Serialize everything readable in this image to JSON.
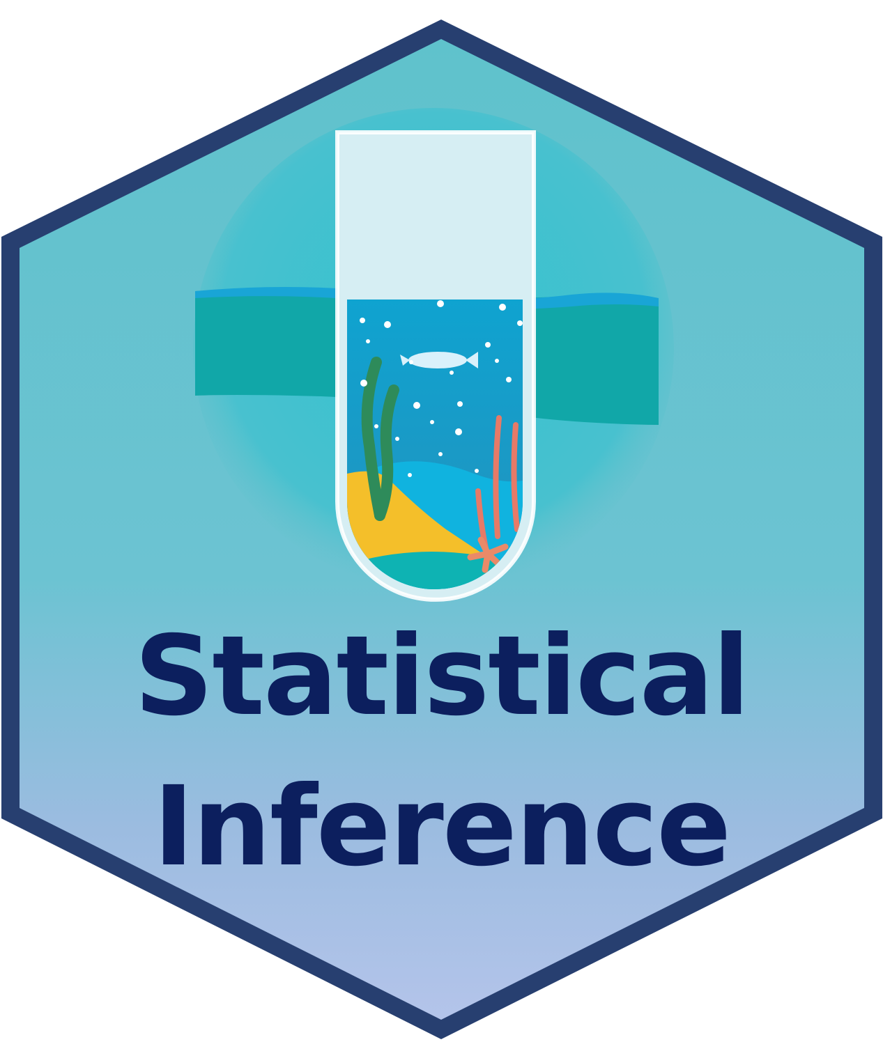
{
  "logo": {
    "title_line_1": "Statistical",
    "title_line_2": "Inference",
    "colors": {
      "border": "#273f70",
      "background_top": "#5fc2cc",
      "background_bottom": "#aebfe6",
      "title": "#0c1f5e",
      "sea_band": "#11a7a8",
      "water": "#1aa6cc",
      "sand": "#f4bf2a",
      "seaweed": "#2e8b5a",
      "coral": "#e77a67"
    },
    "icons": [
      "test-tube-icon",
      "fish-icon",
      "seaweed-icon",
      "coral-icon",
      "starfish-icon",
      "bubbles-icon"
    ]
  }
}
